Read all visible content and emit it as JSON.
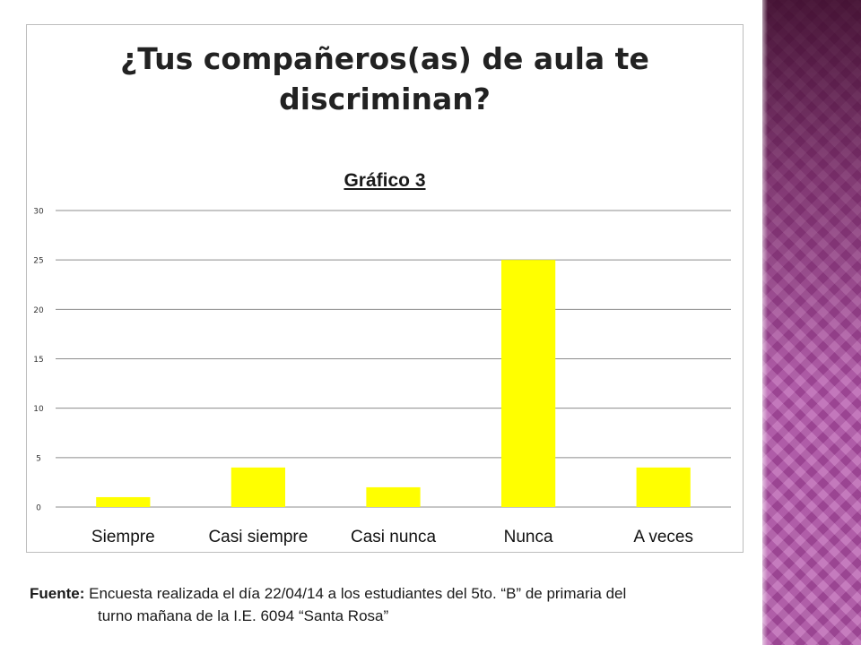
{
  "slide": {
    "title": "¿Tus compañeros(as) de aula te\ndiscriminan?",
    "source_label": "Fuente:",
    "source_text_1": " Encuesta realizada el día 22/04/14 a los estudiantes del 5to. “B”  de primaria del",
    "source_text_2": "turno mañana de la I.E. 6094 “Santa Rosa”"
  },
  "chart_data": {
    "type": "bar",
    "title": "Gráfico 3",
    "categories": [
      "Siempre",
      "Casi siempre",
      "Casi nunca",
      "Nunca",
      "A veces"
    ],
    "values": [
      1,
      4,
      2,
      25,
      4
    ],
    "ylim": [
      0,
      30
    ],
    "yticks": [
      0,
      5,
      10,
      15,
      20,
      25,
      30
    ],
    "grid": true,
    "legend": "none",
    "bar_color": "#ffff00",
    "xlabel": "",
    "ylabel": ""
  },
  "colors": {
    "bar": "#ffff00",
    "grid": "#8c8c8c",
    "panel_accent": "#b24fa8"
  }
}
